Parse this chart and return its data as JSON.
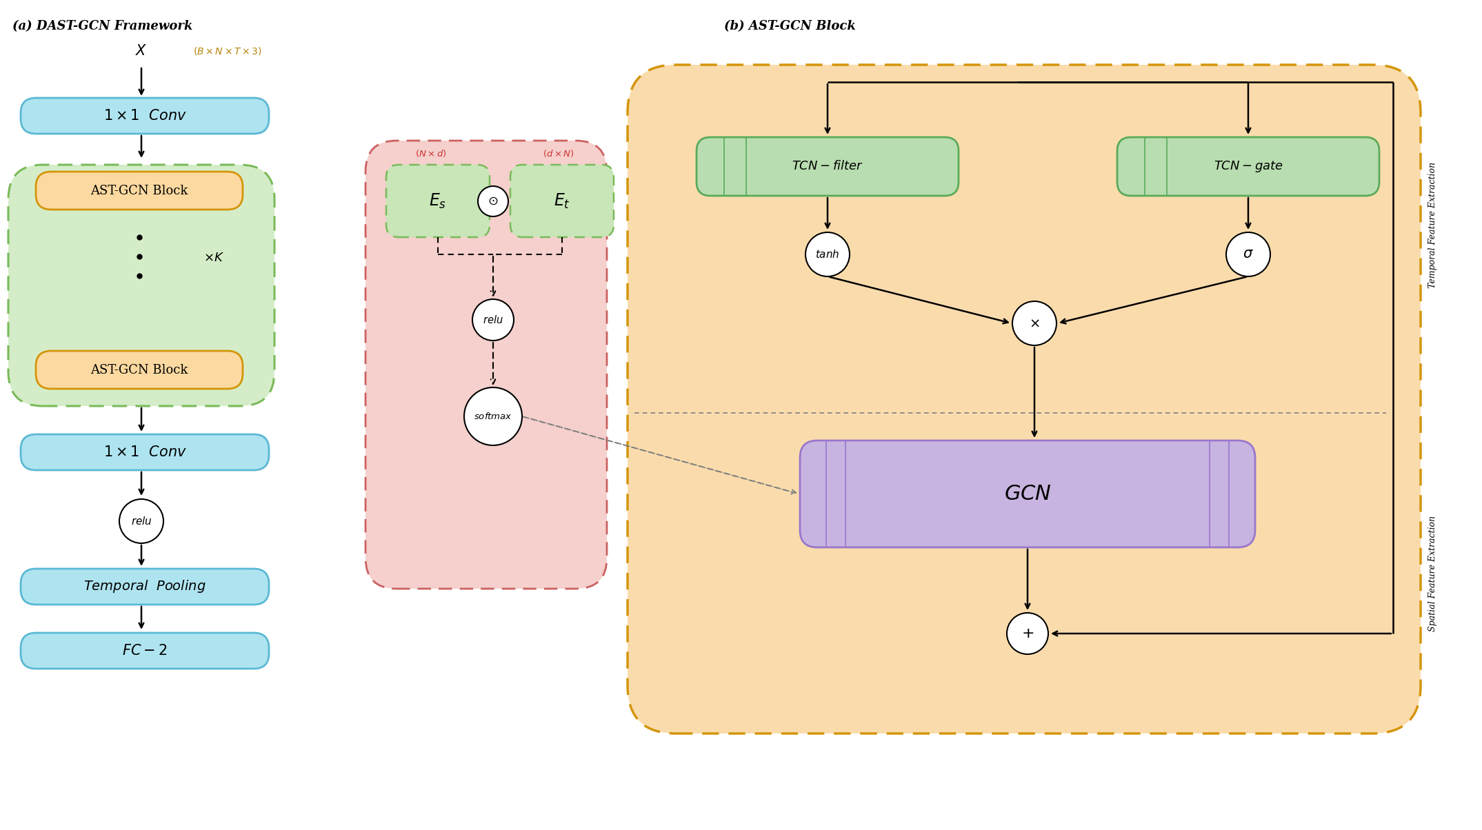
{
  "title_a": "(a) DAST-GCN Framework",
  "title_b": "(b) AST-GCN Block",
  "bg_color": "#ffffff",
  "blue_box_color": "#aee4f0",
  "blue_box_edge": "#5bb8d4",
  "green_outer_color": "#d4edc8",
  "green_outer_edge": "#7aba5a",
  "orange_inner_color": "#fcd9a0",
  "orange_inner_edge": "#d4950a",
  "pink_box_color": "#f5d0cc",
  "pink_box_edge": "#cc6060",
  "orange_big_color": "#fadcac",
  "orange_big_edge": "#d4950a",
  "tcn_box_color": "#b8ddb0",
  "tcn_box_edge": "#5aaa5a",
  "gcn_box_color": "#c8b4e0",
  "gcn_box_edge": "#9977cc",
  "es_et_box_color": "#c8e6b8",
  "es_et_box_edge": "#7aba5a"
}
